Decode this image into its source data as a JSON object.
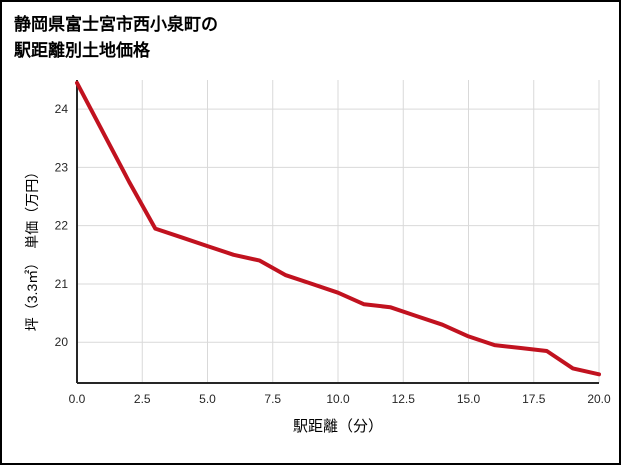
{
  "page": {
    "title_line1": "静岡県富士宮市西小泉町の",
    "title_line2": "駅距離別土地価格"
  },
  "chart_data": {
    "type": "line",
    "title": "静岡県富士宮市西小泉町の駅距離別土地価格",
    "xlabel": "駅距離（分）",
    "ylabel": "坪（3.3㎡）　単価（万円）",
    "x": [
      0,
      1,
      2,
      3,
      4,
      5,
      6,
      7,
      8,
      9,
      10,
      11,
      12,
      13,
      14,
      15,
      16,
      17,
      18,
      19,
      20
    ],
    "y": [
      24.45,
      23.6,
      22.75,
      21.95,
      21.8,
      21.65,
      21.5,
      21.4,
      21.15,
      21.0,
      20.85,
      20.65,
      20.6,
      20.45,
      20.3,
      20.1,
      19.95,
      19.9,
      19.85,
      19.55,
      19.45
    ],
    "xlim": [
      0,
      20
    ],
    "ylim": [
      19.3,
      24.5
    ],
    "xticks": [
      0,
      2.5,
      5,
      7.5,
      10,
      12.5,
      15,
      17.5,
      20
    ],
    "yticks": [
      20,
      21,
      22,
      23,
      24
    ],
    "line_color": "#c1121f",
    "line_width": 4,
    "grid": true,
    "grid_color": "#d9d9d9",
    "axis_color": "#262626",
    "legend": "none"
  }
}
